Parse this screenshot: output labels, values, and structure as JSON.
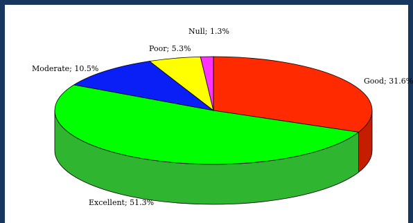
{
  "chart_data": {
    "type": "pie",
    "style": "3d",
    "title": "",
    "legend": "none",
    "slices": [
      {
        "label": "Good; 31.6%",
        "category": "Good",
        "value": 31.6,
        "color": "#ff2a00",
        "side_color": "#c41d00"
      },
      {
        "label": "Excellent; 51.3%",
        "category": "Excellent",
        "value": 51.3,
        "color": "#00ff00",
        "side_color": "#2fb52f"
      },
      {
        "label": "Moderate; 10.5%",
        "category": "Moderate",
        "value": 10.5,
        "color": "#0a1ff5",
        "side_color": "#0815b0"
      },
      {
        "label": "Poor; 5.3%",
        "category": "Poor",
        "value": 5.3,
        "color": "#ffff00",
        "side_color": "#c8c800"
      },
      {
        "label": "Null; 1.3%",
        "category": "Null",
        "value": 1.3,
        "color": "#ff33ff",
        "side_color": "#c020c0"
      }
    ]
  },
  "colors": {
    "frame": "#17375e",
    "outline": "#000000",
    "background": "#ffffff"
  }
}
